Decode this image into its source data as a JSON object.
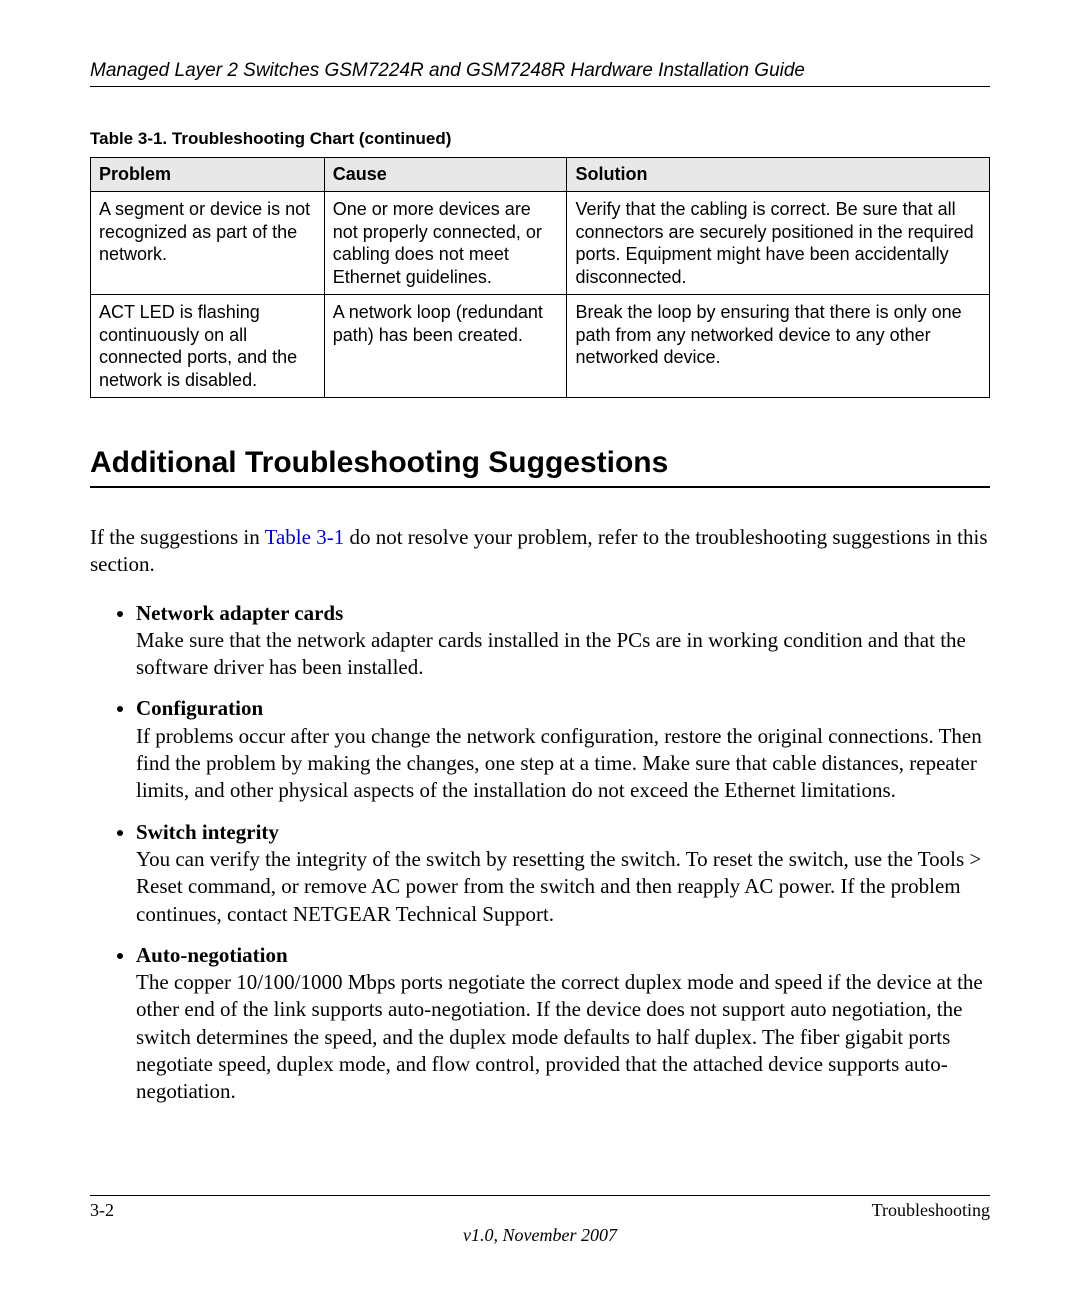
{
  "header": {
    "title": "Managed Layer 2 Switches GSM7224R and GSM7248R Hardware Installation Guide"
  },
  "table": {
    "caption": "Table 3-1.  Troubleshooting Chart (continued)",
    "columns": [
      "Problem",
      "Cause",
      "Solution"
    ],
    "col_widths_pct": [
      26,
      27,
      47
    ],
    "header_bg": "#e8e8e8",
    "border_color": "#000000",
    "rows": [
      {
        "problem": "A segment or device is not recognized as part of the network.",
        "cause": "One or more devices are not properly connected, or cabling does not meet Ethernet guidelines.",
        "solution": "Verify that the cabling is correct. Be sure that all connectors are securely positioned in the required ports. Equipment might have been accidentally disconnected."
      },
      {
        "problem": "ACT LED is flashing continuously on all connected ports, and the network is disabled.",
        "cause": "A network loop (redundant path) has been created.",
        "solution": "Break the loop by ensuring that there is only one path from any networked device to any other networked device."
      }
    ]
  },
  "section": {
    "heading": "Additional Troubleshooting Suggestions",
    "intro_before_link": "If the suggestions in ",
    "intro_link": "Table 3-1",
    "intro_after_link": " do not resolve your problem, refer to the troubleshooting suggestions in this section.",
    "link_color": "#0000cc",
    "items": [
      {
        "title": "Network adapter cards",
        "body": "Make sure that the network adapter cards installed in the PCs are in working condition and that the software driver has been installed."
      },
      {
        "title": "Configuration",
        "body": "If problems occur after you change the network configuration, restore the original connections. Then find the problem by making the changes, one step at a time. Make sure that cable distances, repeater limits, and other physical aspects of the installation do not exceed the Ethernet limitations."
      },
      {
        "title": "Switch integrity",
        "body": "You can verify the integrity of the switch by resetting the switch. To reset the switch, use the Tools > Reset command, or remove AC power from the switch and then reapply AC power. If the problem continues, contact NETGEAR Technical Support."
      },
      {
        "title": "Auto-negotiation",
        "body": "The copper 10/100/1000 Mbps ports negotiate the correct duplex mode and speed if the device at the other end of the link supports auto-negotiation. If the device does not support auto negotiation, the switch determines the speed, and the duplex mode defaults to half duplex. The fiber gigabit ports negotiate speed, duplex mode, and flow control, provided that the attached device supports auto-negotiation."
      }
    ]
  },
  "footer": {
    "left": "3-2",
    "right": "Troubleshooting",
    "version": "v1.0, November 2007"
  },
  "typography": {
    "body_font": "Times New Roman",
    "sans_font": "Arial",
    "body_fontsize": 21,
    "table_fontsize": 18,
    "heading_fontsize": 30,
    "caption_fontsize": 17
  }
}
